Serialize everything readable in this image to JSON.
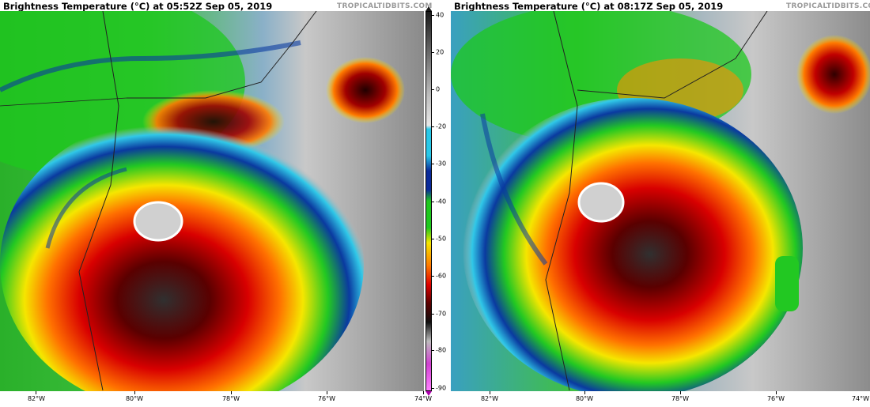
{
  "panels": [
    {
      "title": "Brightness Temperature (°C) at 05:52Z Sep 05, 2019",
      "credit": "TROPICALTIDBITS.COM",
      "lon_labels": [
        "82°W",
        "80°W",
        "78°W",
        "76°W",
        "74°W"
      ]
    },
    {
      "title": "Brightness Temperature (°C) at 08:17Z Sep 05, 2019",
      "credit": "TROPICALTIDBITS.COM",
      "lon_labels": [
        "82°W",
        "80°W",
        "78°W",
        "76°W",
        "74°W"
      ]
    }
  ],
  "colorbar": {
    "labels": [
      "40",
      "20",
      "0",
      "-20",
      "-30",
      "-40",
      "-50",
      "-60",
      "-70",
      "-80",
      "-90"
    ],
    "colors": {
      "warm": "#1a1a1a",
      "clear": "#bdbdbd",
      "cyan": "#28c8e8",
      "blue": "#0a2a9a",
      "green": "#1ec81e",
      "yellow": "#f5e600",
      "orange": "#ff7a00",
      "red": "#e00000",
      "darkred": "#5a0000",
      "black": "#101010",
      "magenta": "#d040d0"
    }
  }
}
